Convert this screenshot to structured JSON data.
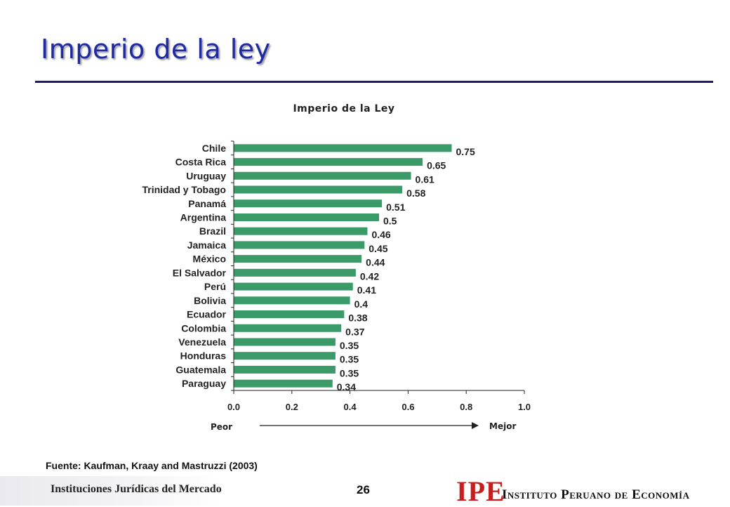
{
  "slide": {
    "title": "Imperio de la ley",
    "source": "Fuente: Kaufman, Kraay and Mastruzzi (2003)"
  },
  "footer": {
    "left_text": "Instituciones Jurídicas del Mercado",
    "page_number": "26",
    "logo_text": "IPE",
    "institute_name": "Instituto Peruano de Economía"
  },
  "colors": {
    "bar": "#3a9a68",
    "title": "#1f2a9e",
    "logo": "#c81e1e"
  },
  "chart_data": {
    "type": "bar",
    "orientation": "horizontal",
    "title": "Imperio de la Ley",
    "categories": [
      "Chile",
      "Costa Rica",
      "Uruguay",
      "Trinidad y Tobago",
      "Panamá",
      "Argentina",
      "Brazil",
      "Jamaica",
      "México",
      "El Salvador",
      "Perú",
      "Bolivia",
      "Ecuador",
      "Colombia",
      "Venezuela",
      "Honduras",
      "Guatemala",
      "Paraguay"
    ],
    "values": [
      0.75,
      0.65,
      0.61,
      0.58,
      0.51,
      0.5,
      0.46,
      0.45,
      0.44,
      0.42,
      0.41,
      0.4,
      0.38,
      0.37,
      0.35,
      0.35,
      0.35,
      0.34
    ],
    "value_labels": [
      "0.75",
      "0.65",
      "0.61",
      "0.58",
      "0.51",
      "0.5",
      "0.46",
      "0.45",
      "0.44",
      "0.42",
      "0.41",
      "0.4",
      "0.38",
      "0.37",
      "0.35",
      "0.35",
      "0.35",
      "0.34"
    ],
    "xlim": [
      0,
      1.0
    ],
    "xticks": [
      0.0,
      0.2,
      0.4,
      0.6,
      0.8,
      1.0
    ],
    "xtick_labels": [
      "0.0",
      "0.2",
      "0.4",
      "0.6",
      "0.8",
      "1.0"
    ],
    "direction_left": "Peor",
    "direction_right": "Mejor",
    "grid": false,
    "legend": "none"
  }
}
